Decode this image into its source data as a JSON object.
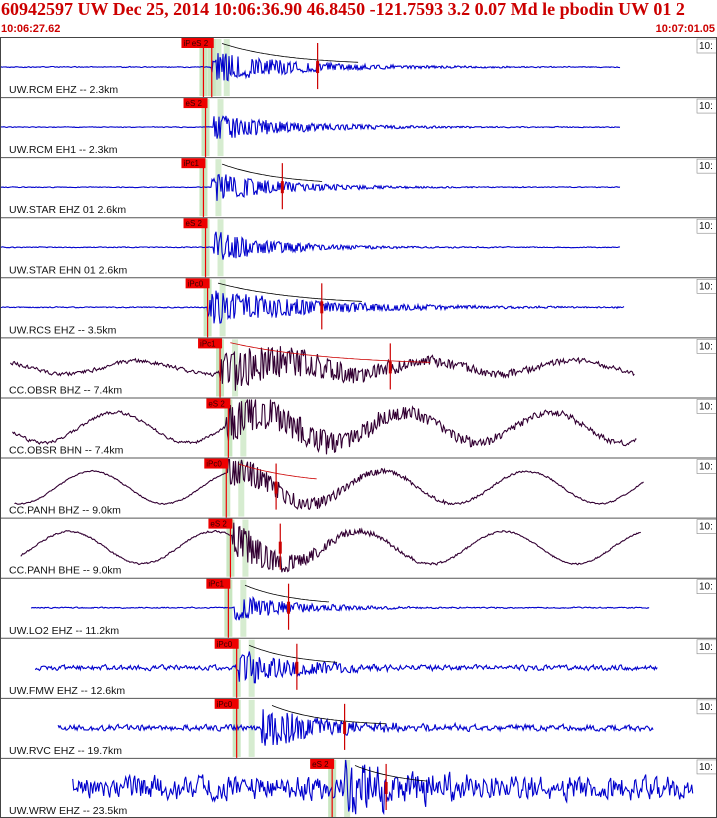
{
  "header": {
    "title": "60942597 UW Dec 25, 2014 10:06:36.90    46.8450 -121.7593  3.2 0.07 Md le pbodin UW 01   2",
    "start_time": "10:06:27.62",
    "end_time": "10:07:01.05",
    "right_label": "10:"
  },
  "colors": {
    "header_text": "#cc0000",
    "uw_trace": "#0000cc",
    "cc_trace": "#330033",
    "pick_box": "#ee0000",
    "pick_band": "#c8e6c0",
    "coda_line": "#000000",
    "amp_line": "#cc0000",
    "separator": "#555555"
  },
  "chart_data": {
    "type": "line",
    "x_unit": "s",
    "xlim": [
      0,
      33.43
    ],
    "traces": [
      {
        "label": "UW.RCM EHZ -- 2.3km",
        "network": "UW",
        "style": "blue",
        "t_start": 0.0,
        "t_end": 29.9,
        "amp": 0.55,
        "onset": 10.2,
        "decay": 4,
        "noise": 0.02,
        "coda": true,
        "amp_mark": 15.3,
        "picks": [
          {
            "label": "iPd0",
            "t": 9.8
          },
          {
            "label": "eS 2",
            "t": 10.2
          }
        ]
      },
      {
        "label": "UW.RCM EH1 -- 2.3km",
        "network": "UW",
        "style": "blue",
        "t_start": 0.0,
        "t_end": 29.9,
        "amp": 0.45,
        "onset": 10.3,
        "decay": 4,
        "noise": 0.02,
        "coda": false,
        "picks": [
          {
            "label": "eS 2",
            "t": 9.9
          }
        ]
      },
      {
        "label": "UW.STAR EHZ 01 2.6km",
        "network": "UW",
        "style": "blue",
        "t_start": 0.0,
        "t_end": 29.9,
        "amp": 0.5,
        "onset": 10.2,
        "decay": 3.5,
        "noise": 0.02,
        "coda": true,
        "amp_mark": 13.6,
        "picks": [
          {
            "label": "iPc1",
            "t": 9.8
          }
        ]
      },
      {
        "label": "UW.STAR EHN 01 2.6km",
        "network": "UW",
        "style": "blue",
        "t_start": 0.0,
        "t_end": 29.9,
        "amp": 0.55,
        "onset": 10.3,
        "decay": 3,
        "noise": 0.02,
        "coda": false,
        "picks": [
          {
            "label": "eS 2",
            "t": 9.9
          }
        ]
      },
      {
        "label": "UW.RCS EHZ -- 3.5km",
        "network": "UW",
        "style": "blue",
        "t_start": 0.0,
        "t_end": 30.1,
        "amp": 0.65,
        "onset": 10.0,
        "decay": 5,
        "noise": 0.02,
        "coda": true,
        "amp_mark": 15.5,
        "picks": [
          {
            "label": "iPc0",
            "t": 10.0
          }
        ]
      },
      {
        "label": "CC.OBSR BHZ -- 7.4km",
        "network": "CC",
        "style": "dark",
        "t_start": 0.5,
        "t_end": 30.6,
        "amp": 0.8,
        "onset": 10.6,
        "decay": 6,
        "noise": 0.06,
        "swell": 0.12,
        "coda": true,
        "amp_mark": 18.8,
        "picks": [
          {
            "label": "iPc1",
            "t": 10.6
          }
        ]
      },
      {
        "label": "CC.OBSR BHN -- 7.4km",
        "network": "CC",
        "style": "dark",
        "t_start": 0.6,
        "t_end": 30.7,
        "amp": 0.75,
        "onset": 10.9,
        "decay": 7,
        "noise": 0.05,
        "swell": 0.28,
        "coda": false,
        "picks": [
          {
            "label": "eS 2",
            "t": 11.0
          }
        ]
      },
      {
        "label": "CC.PANH BHZ -- 9.0km",
        "network": "CC",
        "style": "dark",
        "t_start": 0.7,
        "t_end": 31.0,
        "amp": 0.55,
        "onset": 11.0,
        "decay": 4,
        "noise": 0.03,
        "swell": 0.3,
        "coda": true,
        "amp_mark": 13.3,
        "picks": [
          {
            "label": "iPc0",
            "t": 10.9
          }
        ]
      },
      {
        "label": "CC.PANH BHE -- 9.0km",
        "network": "CC",
        "style": "dark",
        "t_start": 1.0,
        "t_end": 30.9,
        "amp": 0.7,
        "onset": 11.2,
        "decay": 3,
        "noise": 0.03,
        "swell": 0.3,
        "coda": false,
        "amp_mark": 13.5,
        "picks": [
          {
            "label": "eS 2",
            "t": 11.1
          }
        ]
      },
      {
        "label": "UW.LO2 EHZ -- 11.2km",
        "network": "UW",
        "style": "blue",
        "t_start": 1.5,
        "t_end": 31.3,
        "amp": 0.45,
        "onset": 11.3,
        "decay": 3,
        "noise": 0.03,
        "coda": true,
        "amp_mark": 13.9,
        "picks": [
          {
            "label": "iPc1",
            "t": 11.0
          }
        ]
      },
      {
        "label": "UW.FMW EHZ -- 12.6km",
        "network": "UW",
        "style": "blue",
        "t_start": 1.7,
        "t_end": 31.7,
        "amp": 0.6,
        "onset": 11.5,
        "decay": 3,
        "noise": 0.1,
        "coda": true,
        "amp_mark": 14.3,
        "picks": [
          {
            "label": "iPc0",
            "t": 11.4
          }
        ]
      },
      {
        "label": "UW.RVC EHZ -- 19.7km",
        "network": "UW",
        "style": "blue",
        "t_start": 2.8,
        "t_end": 31.5,
        "amp": 0.7,
        "onset": 12.6,
        "decay": 3,
        "noise": 0.1,
        "coda": true,
        "amp_mark": 16.6,
        "picks": [
          {
            "label": "iPc0",
            "t": 11.4
          }
        ]
      },
      {
        "label": "UW.WRW EHZ -- 23.5km",
        "network": "UW",
        "style": "blue",
        "t_start": 3.5,
        "t_end": 33.4,
        "amp": 0.9,
        "onset": 16.6,
        "decay": 3,
        "noise": 0.3,
        "coda": true,
        "amp_mark": 18.6,
        "picks": [
          {
            "label": "eS 2",
            "t": 16.0
          }
        ]
      }
    ]
  }
}
